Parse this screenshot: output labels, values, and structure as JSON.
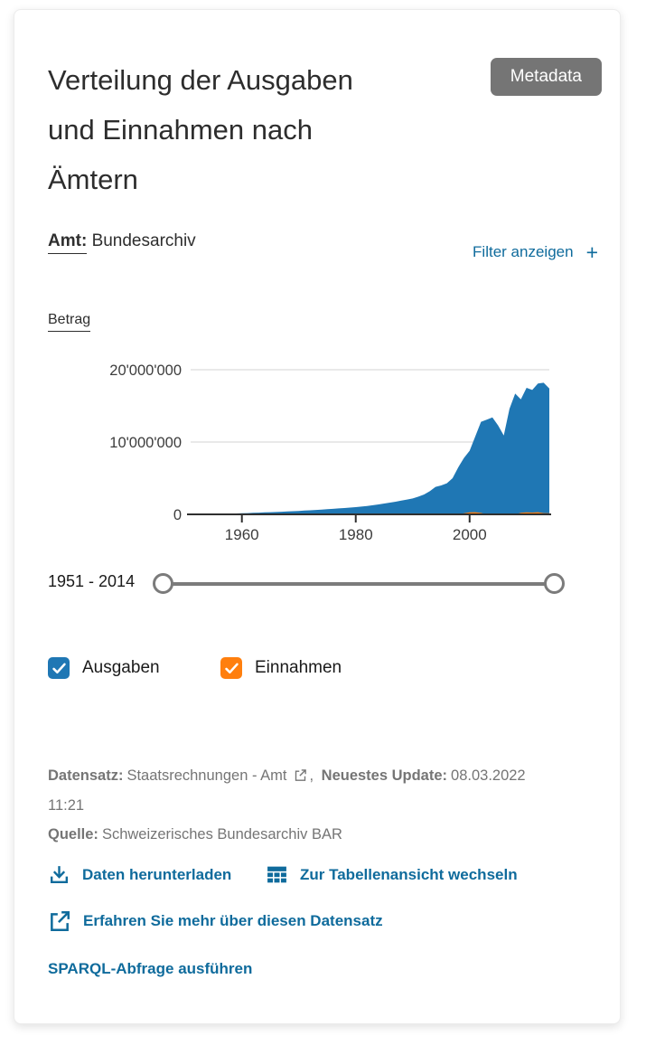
{
  "card": {
    "title_lines": [
      "Verteilung der Ausgaben",
      "und Einnahmen nach",
      "Ämtern"
    ],
    "metadata_button": "Metadata",
    "filter_term": "Amt:",
    "filter_value": "Bundesarchiv",
    "filter_toggle_label": "Filter anzeigen",
    "filter_toggle_plus": "+"
  },
  "chart_data": {
    "type": "area",
    "title": "Verteilung der Ausgaben und Einnahmen nach Ämtern",
    "ylabel": "Betrag",
    "xlabel": "",
    "grid": "horizontal",
    "legend_position": "below-as-checkboxes",
    "xlim": [
      1951,
      2014
    ],
    "ylim": [
      0,
      20000000
    ],
    "x_ticks": [
      {
        "value": 1960,
        "label": "1960"
      },
      {
        "value": 1980,
        "label": "1980"
      },
      {
        "value": 2000,
        "label": "2000"
      }
    ],
    "y_ticks": [
      {
        "value": 0,
        "label": "0"
      },
      {
        "value": 10000000,
        "label": "10'000'000"
      },
      {
        "value": 20000000,
        "label": "20'000'000"
      }
    ],
    "x": [
      1951,
      1952,
      1953,
      1954,
      1955,
      1956,
      1957,
      1958,
      1959,
      1960,
      1961,
      1962,
      1963,
      1964,
      1965,
      1966,
      1967,
      1968,
      1969,
      1970,
      1971,
      1972,
      1973,
      1974,
      1975,
      1976,
      1977,
      1978,
      1979,
      1980,
      1981,
      1982,
      1983,
      1984,
      1985,
      1986,
      1987,
      1988,
      1989,
      1990,
      1991,
      1992,
      1993,
      1994,
      1995,
      1996,
      1997,
      1998,
      1999,
      2000,
      2001,
      2002,
      2003,
      2004,
      2005,
      2006,
      2007,
      2008,
      2009,
      2010,
      2011,
      2012,
      2013,
      2014
    ],
    "series": [
      {
        "name": "Ausgaben",
        "color": "#1f77b4",
        "values": [
          20000,
          25000,
          30000,
          40000,
          50000,
          65000,
          80000,
          100000,
          120000,
          150000,
          180000,
          210000,
          240000,
          270000,
          300000,
          330000,
          360000,
          400000,
          440000,
          480000,
          520000,
          560000,
          610000,
          660000,
          710000,
          760000,
          820000,
          880000,
          940000,
          1000000,
          1080000,
          1160000,
          1260000,
          1380000,
          1500000,
          1620000,
          1750000,
          1900000,
          2050000,
          2200000,
          2450000,
          2750000,
          3200000,
          3800000,
          4000000,
          4300000,
          5000000,
          6500000,
          7800000,
          8800000,
          10800000,
          12800000,
          13100000,
          13400000,
          12300000,
          10900000,
          14600000,
          16700000,
          15900000,
          17500000,
          17200000,
          18100000,
          18200000,
          17400000
        ]
      },
      {
        "name": "Einnahmen",
        "color": "#ff7f0e",
        "values": [
          0,
          0,
          0,
          0,
          0,
          0,
          0,
          0,
          0,
          0,
          0,
          0,
          0,
          0,
          0,
          0,
          0,
          0,
          0,
          0,
          0,
          0,
          0,
          0,
          0,
          0,
          0,
          0,
          0,
          0,
          0,
          0,
          0,
          0,
          0,
          0,
          0,
          0,
          0,
          0,
          0,
          0,
          0,
          0,
          0,
          0,
          0,
          0,
          150000,
          280000,
          300000,
          200000,
          0,
          0,
          0,
          0,
          0,
          0,
          220000,
          280000,
          250000,
          300000,
          180000,
          150000
        ]
      }
    ]
  },
  "slider": {
    "range_label": "1951 - 2014"
  },
  "legend": [
    {
      "label": "Ausgaben",
      "color": "#1f77b4",
      "checked": true
    },
    {
      "label": "Einnahmen",
      "color": "#ff7f0e",
      "checked": true
    }
  ],
  "footer": {
    "dataset_label": "Datensatz:",
    "dataset_value": "Staatsrechnungen - Amt",
    "separator": ",",
    "update_label": "Neuestes Update:",
    "update_date": "08.03.2022",
    "update_time": "11:21",
    "source_label": "Quelle:",
    "source_value": "Schweizerisches Bundesarchiv BAR"
  },
  "actions": {
    "download": "Daten herunterladen",
    "table_view": "Zur Tabellenansicht wechseln",
    "learn_more": "Erfahren Sie mehr über diesen Datensatz",
    "sparql": "SPARQL-Abfrage ausführen"
  },
  "colors": {
    "accent_link": "#0f6b9c",
    "series_blue": "#1f77b4",
    "series_orange": "#ff7f0e",
    "metadata_button_bg": "#757575",
    "footer_text": "#757575",
    "gridline": "#dcdcdc",
    "axis": "#2f2f2f"
  }
}
